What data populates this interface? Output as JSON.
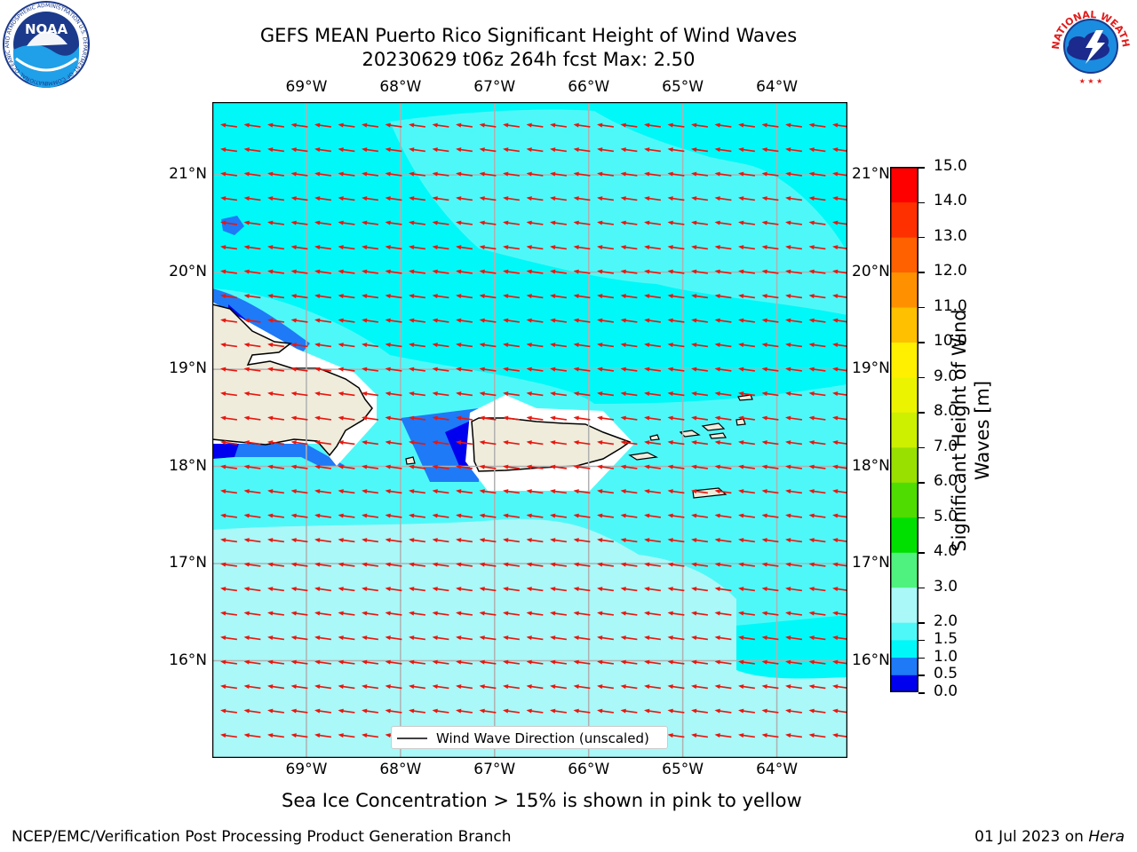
{
  "title": {
    "line1": "GEFS MEAN Puerto Rico Significant Height of Wind Waves",
    "line2": "20230629 t06z 264h fcst   Max: 2.50"
  },
  "logos": {
    "noaa": {
      "text": "NOAA",
      "ring_text": "NATIONAL OCEANIC AND ATMOSPHERIC ADMINISTRATION U.S. DEPARTMENT OF COMMERCE",
      "icon": "noaa-logo-icon"
    },
    "nws": {
      "ring_text": "NATIONAL WEATHER SERVICE",
      "icon": "nws-logo-icon"
    }
  },
  "map": {
    "lon_labels": [
      "69°W",
      "68°W",
      "67°W",
      "66°W",
      "65°W",
      "64°W"
    ],
    "lat_labels": [
      "21°N",
      "20°N",
      "19°N",
      "18°N",
      "17°N",
      "16°N"
    ],
    "extent": {
      "lon_min": -70.0,
      "lon_max": -63.25,
      "lat_min": 15.0,
      "lat_max": 21.75
    },
    "legend_label": "Wind Wave Direction (unscaled)",
    "arrow_direction": "toward west (easterly trades)",
    "colors": {
      "land": "#efecdc",
      "arrow": "#e8170e",
      "grid": "#b0b0b0"
    }
  },
  "colorbar": {
    "label": "Significant Height of Wind Waves [m]",
    "label_line1": "Significant Height of Wind",
    "label_line2": "Waves [m]",
    "levels": [
      "0.0",
      "0.5",
      "1.0",
      "1.5",
      "2.0",
      "3.0",
      "4.0",
      "5.0",
      "6.0",
      "7.0",
      "8.0",
      "9.0",
      "10.0",
      "11.0",
      "12.0",
      "13.0",
      "14.0",
      "15.0"
    ],
    "colors": [
      "#0000ee",
      "#1e7af7",
      "#00f8f8",
      "#4ff8f8",
      "#aaf8f8",
      "#4ff27e",
      "#00e000",
      "#4fdc00",
      "#99e000",
      "#ccf000",
      "#ecf300",
      "#fff000",
      "#ffc000",
      "#ff9000",
      "#ff6000",
      "#ff3000",
      "#ff0000"
    ]
  },
  "caption": "Sea Ice Concentration > 15% is shown in pink to yellow",
  "footer": {
    "left": "NCEP/EMC/Verification Post Processing Product Generation Branch",
    "right_date": "01 Jul 2023 on ",
    "right_host": "Hera"
  }
}
